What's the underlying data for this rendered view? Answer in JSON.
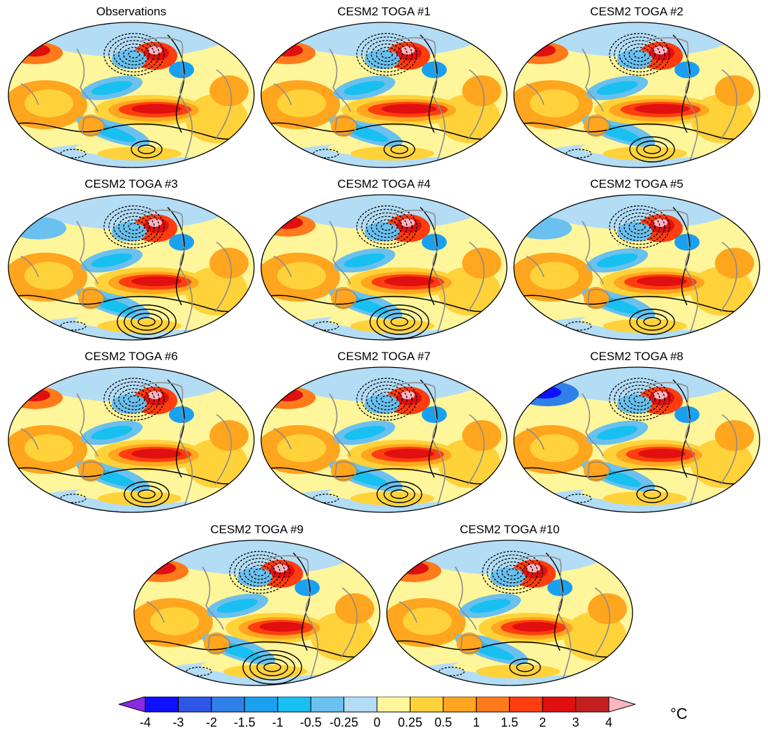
{
  "figure": {
    "panel_titles": [
      "Observations",
      "CESM2 TOGA #1",
      "CESM2 TOGA #2",
      "CESM2 TOGA #3",
      "CESM2 TOGA #4",
      "CESM2 TOGA #5",
      "CESM2 TOGA #6",
      "CESM2 TOGA #7",
      "CESM2 TOGA #8",
      "CESM2 TOGA #9",
      "CESM2 TOGA #10"
    ],
    "projection": "Hammer/Mollweide-like global ellipse",
    "colorbar": {
      "tick_labels": [
        "-4",
        "-3",
        "-2",
        "-1.5",
        "-1",
        "-0.5",
        "-0.25",
        "0",
        "0.25",
        "0.5",
        "1",
        "1.5",
        "2",
        "3",
        "4"
      ],
      "unit": "°C",
      "colors": [
        "#8a2be2",
        "#1010ff",
        "#2f55e6",
        "#2f7fe8",
        "#1aa0f0",
        "#17c0f0",
        "#6ac0ee",
        "#b3dcf5",
        "#fff59a",
        "#ffd23a",
        "#ffa51e",
        "#ff7a1a",
        "#ff3d0e",
        "#e01010",
        "#c42020",
        "#ffb6c1"
      ],
      "end_arrows": true
    },
    "contours": {
      "positive_style": "solid black",
      "negative_style": "dashed black"
    },
    "land_outline_color": "#8c8c8c"
  }
}
